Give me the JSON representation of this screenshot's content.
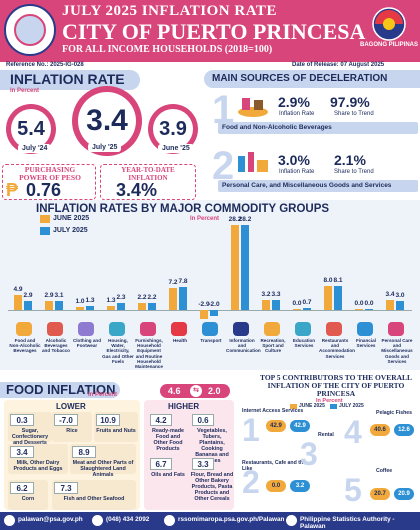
{
  "header": {
    "line1": "JULY 2025 INFLATION RATE",
    "line2": "CITY OF PUERTO PRINCESA",
    "line3": "FOR ALL INCOME HOUSEHOLDS (2018=100)",
    "badge": "BAGONG PILIPINAS",
    "reference": "Reference No.: 2025-IG-028",
    "release": "Date of Release: 07 August 2025"
  },
  "inflation": {
    "title": "INFLATION RATE",
    "subtitle": "In Percent",
    "prev": {
      "value": "5.4",
      "label": "July '24"
    },
    "curr": {
      "value": "3.4",
      "label": "July '25"
    },
    "june": {
      "value": "3.9",
      "label": "June '25"
    }
  },
  "purchasing": {
    "title": "PURCHASING POWER OF  PESO",
    "symbol": "₱",
    "value": "0.76"
  },
  "ytd": {
    "title": "YEAR-TO-DATE INFLATION",
    "value": "3.4%"
  },
  "deceleration": {
    "title": "MAIN SOURCES OF DECELERATION",
    "items": [
      {
        "num": "1",
        "rate": "2.9%",
        "rate_label": "Inflation Rate",
        "share": "97.9%",
        "share_label": "Share to Trend",
        "name": "Food and Non-Alcoholic Beverages"
      },
      {
        "num": "2",
        "rate": "3.0%",
        "rate_label": "Inflation Rate",
        "share": "2.1%",
        "share_label": "Share to Trend",
        "name": "Personal Care, and Miscellaneous Goods and Services"
      }
    ]
  },
  "commodity": {
    "title": "INFLATION RATES BY MAJOR COMMODITY GROUPS",
    "subtitle": "In Percent",
    "legend": [
      "JUNE 2025",
      "JULY 2025"
    ]
  },
  "chart_data": {
    "type": "bar",
    "title": "INFLATION RATES BY MAJOR COMMODITY GROUPS",
    "subtitle": "In Percent",
    "categories": [
      "Food and Non-Alcoholic Beverages",
      "Alcoholic Beverages and Tobacco",
      "Clothing and Footwear",
      "Housing, Water, Electricity, Gas and Other Fuels",
      "Furnishings, Household Equipment and Routine Household Maintenance",
      "Health",
      "Transport",
      "Information and Communication",
      "Recreation, Sport and Culture",
      "Education Services",
      "Restaurants and Accommodation Services",
      "Financial Services",
      "Personal Care and Miscellaneous Goods and Services"
    ],
    "series": [
      {
        "name": "JUNE 2025",
        "values": [
          4.9,
          2.9,
          1.0,
          1.3,
          2.2,
          7.2,
          -2.9,
          28.2,
          3.2,
          0.0,
          8.0,
          0.0,
          3.4
        ],
        "labels": [
          "4.9",
          "2.9",
          "1.0",
          "1.3",
          "2.2",
          "7.2",
          "-2.9",
          "28.2",
          "3.2",
          "0.0",
          "8.0",
          "0.0",
          "3.4"
        ],
        "color": "#f2a93b"
      },
      {
        "name": "JULY 2025",
        "values": [
          2.9,
          3.1,
          1.3,
          2.3,
          2.2,
          7.8,
          -2.0,
          28.2,
          3.3,
          0.7,
          8.1,
          0.0,
          3.0
        ],
        "labels": [
          "2.9",
          "3.1",
          "1.3",
          "2.3",
          "2.2",
          "7.8",
          "-2.0",
          "28.2",
          "3.3",
          "0.7",
          "8.1",
          "0.0",
          "3.0"
        ],
        "color": "#2d8fd4"
      }
    ],
    "ylim": [
      -3,
      29
    ],
    "legend_position": "top-left",
    "grid": false
  },
  "food": {
    "title": "FOOD INFLATION",
    "subtitle": "In Percent",
    "lower_label": "LOWER",
    "higher_label": "HIGHER",
    "lower_count": "4.6",
    "higher_count": "2.0",
    "lower": [
      {
        "value": "0.3",
        "name": "Sugar, Confectionery and Desserts"
      },
      {
        "value": "-7.0",
        "name": "Rice"
      },
      {
        "value": "10.9",
        "name": "Fruits and Nuts"
      },
      {
        "value": "3.4",
        "name": "Milk, Other Dairy Products and Eggs"
      },
      {
        "value": "8.9",
        "name": "Meat and Other Parts of Slaughtered Land Animals"
      },
      {
        "value": "6.2",
        "name": "Corn"
      },
      {
        "value": "7.3",
        "name": "Fish and Other Seafood"
      }
    ],
    "higher": [
      {
        "value": "4.2",
        "name": "Ready-made Food and Other Food Products"
      },
      {
        "value": "0.6",
        "name": "Vegetables, Tubers, Plantains, Cooking Bananas and Pulses"
      },
      {
        "value": "6.7",
        "name": "Oils and Fats"
      },
      {
        "value": "3.3",
        "name": "Flour, Bread and Other Bakery Products, Pasta Products and Other Cereals"
      }
    ]
  },
  "top5": {
    "title": "TOP 5 CONTRIBUTORS TO THE OVERALL INFLATION OF THE CITY OF PUERTO PRINCESA",
    "subtitle": "In Percent",
    "legend": [
      "JUNE 2025",
      "JULY 2025"
    ],
    "items": [
      {
        "rank": "1",
        "name": "Internet Access Services",
        "june": "42.9",
        "july": "42.9"
      },
      {
        "rank": "2",
        "name": "Restaurants, Cafe and the Like",
        "june": "0.0",
        "july": "3.2"
      },
      {
        "rank": "3",
        "name": "Rental",
        "june": "",
        "july": ""
      },
      {
        "rank": "4",
        "name": "Pelagic Fishes",
        "june": "40.6",
        "july": "12.6"
      },
      {
        "rank": "5",
        "name": "Coffee",
        "june": "20.7",
        "july": "20.9"
      }
    ]
  },
  "footer": {
    "email": "palawan@psa.gov.ph",
    "phone": "(048) 434 2092",
    "web": "rssomimaropa.psa.gov.ph/Palawan",
    "fb": "Philippine Statistics Authority - Palawan"
  }
}
